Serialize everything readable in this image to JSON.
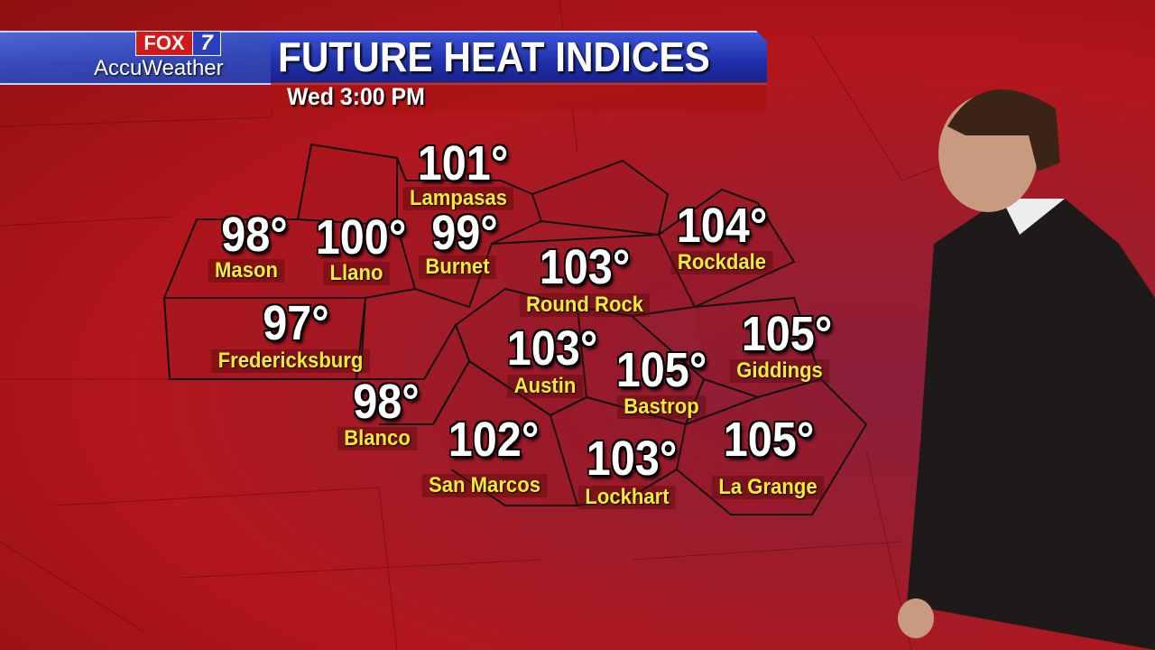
{
  "header": {
    "network": "FOX",
    "channel": "7",
    "brand": "AccuWeather",
    "title": "FUTURE HEAT INDICES",
    "time": "Wed 3:00 PM"
  },
  "colors": {
    "banner": "#2336b8",
    "label": "#f4ea3a",
    "temp": "#ffffff",
    "map": "#b3161c"
  },
  "cities": [
    {
      "name": "Mason",
      "temp": "98°"
    },
    {
      "name": "Llano",
      "temp": "100°"
    },
    {
      "name": "Burnet",
      "temp": "99°"
    },
    {
      "name": "Lampasas",
      "temp": "101°"
    },
    {
      "name": "Round Rock",
      "temp": "103°"
    },
    {
      "name": "Rockdale",
      "temp": "104°"
    },
    {
      "name": "Fredericksburg",
      "temp": "97°"
    },
    {
      "name": "Austin",
      "temp": "103°"
    },
    {
      "name": "Bastrop",
      "temp": "105°"
    },
    {
      "name": "Giddings",
      "temp": "105°"
    },
    {
      "name": "Blanco",
      "temp": "98°"
    },
    {
      "name": "San Marcos",
      "temp": "102°"
    },
    {
      "name": "Lockhart",
      "temp": "103°"
    },
    {
      "name": "La Grange",
      "temp": "105°"
    }
  ]
}
